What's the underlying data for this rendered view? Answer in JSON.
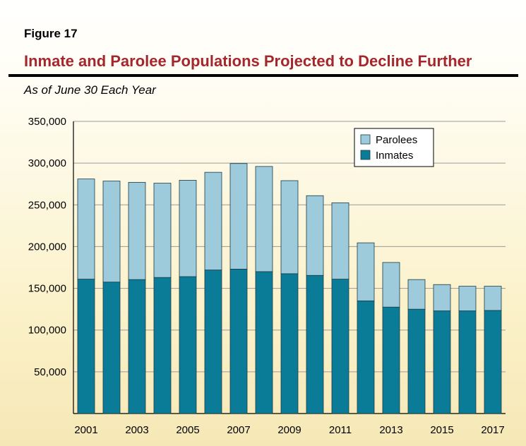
{
  "figure_label": "Figure 17",
  "title": "Inmate and Parolee Populations Projected to Decline Further",
  "subtitle": "As of June 30 Each Year",
  "colors": {
    "parolees": "#9ecbdc",
    "inmates": "#0b7c98",
    "title": "#a3272d"
  },
  "chart_data": {
    "type": "bar",
    "stacked": true,
    "categories": [
      "2001",
      "2002",
      "2003",
      "2004",
      "2005",
      "2006",
      "2007",
      "2008",
      "2009",
      "2010",
      "2011",
      "2012",
      "2013",
      "2014",
      "2015",
      "2016",
      "2017"
    ],
    "x_tick_labels": [
      "2001",
      "",
      "2003",
      "",
      "2005",
      "",
      "2007",
      "",
      "2009",
      "",
      "2011",
      "",
      "2013",
      "",
      "2015",
      "",
      "2017"
    ],
    "series": [
      {
        "name": "Inmates",
        "values": [
          161000,
          157500,
          160500,
          163000,
          164000,
          172000,
          173000,
          170000,
          167500,
          165500,
          161000,
          135000,
          127500,
          125000,
          123000,
          123000,
          123500
        ]
      },
      {
        "name": "Parolees",
        "values": [
          120000,
          121000,
          116500,
          113000,
          115500,
          117000,
          126500,
          126000,
          111500,
          95500,
          91500,
          69500,
          53500,
          35500,
          31500,
          29500,
          29000
        ]
      }
    ],
    "ylim": [
      0,
      350000
    ],
    "yticks": [
      50000,
      100000,
      150000,
      200000,
      250000,
      300000,
      350000
    ],
    "ytick_labels": [
      "50,000",
      "100,000",
      "150,000",
      "200,000",
      "250,000",
      "300,000",
      "350,000"
    ],
    "grid": true,
    "legend": "top-right",
    "legend_entries": [
      "Parolees",
      "Inmates"
    ],
    "xlabel": "",
    "ylabel": ""
  }
}
